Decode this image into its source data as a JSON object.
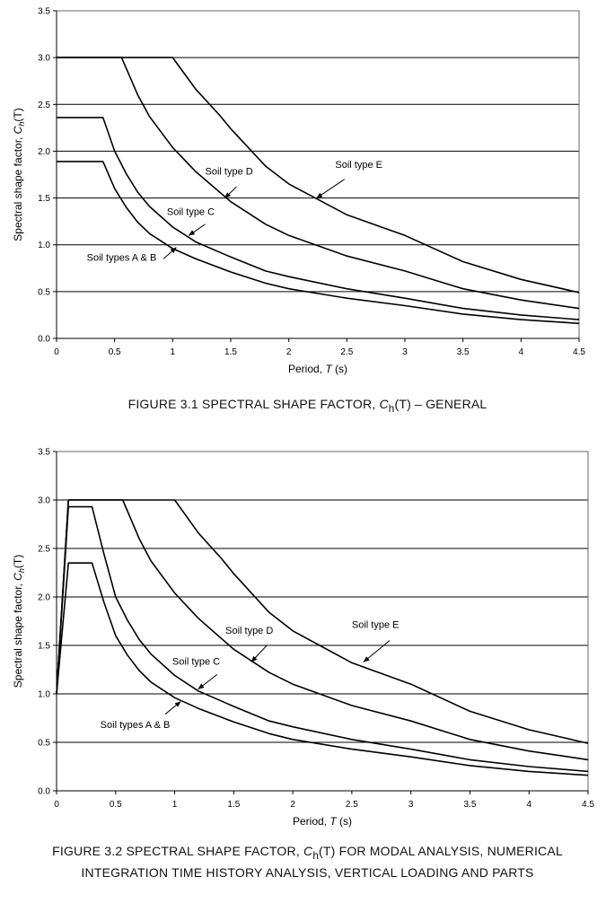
{
  "chart_data": [
    {
      "type": "line",
      "title": "FIGURE 3.1 SPECTRAL SHAPE FACTOR, Ch(T) – GENERAL",
      "caption": {
        "pre": "FIGURE 3.1 SPECTRAL SHAPE FACTOR, ",
        "sym": "C",
        "sub": "h",
        "post": "(T) – GENERAL"
      },
      "xlabel": {
        "text": "Period, ",
        "sym": "T",
        "post": " (s)"
      },
      "ylabel": {
        "text": "Spectral shape factor, ",
        "sym": "C",
        "sub": "h",
        "post": "(T)"
      },
      "xlim": [
        0,
        4.5
      ],
      "ylim": [
        0,
        3.5
      ],
      "xticks": [
        "0",
        "0.5",
        "1",
        "1.5",
        "2",
        "2.5",
        "3",
        "3.5",
        "4",
        "4.5"
      ],
      "yticks": [
        "0.0",
        "0.5",
        "1.0",
        "1.5",
        "2.0",
        "2.5",
        "3.0",
        "3.5"
      ],
      "grid": "horizontal",
      "series": [
        {
          "name": "Soil types A & B",
          "points": [
            [
              0,
              1.89
            ],
            [
              0.4,
              1.89
            ],
            [
              0.5,
              1.6
            ],
            [
              0.6,
              1.4
            ],
            [
              0.7,
              1.24
            ],
            [
              0.8,
              1.12
            ],
            [
              1.0,
              0.96
            ],
            [
              1.2,
              0.85
            ],
            [
              1.5,
              0.71
            ],
            [
              1.8,
              0.59
            ],
            [
              2.0,
              0.53
            ],
            [
              2.5,
              0.43
            ],
            [
              3.0,
              0.35
            ],
            [
              3.5,
              0.26
            ],
            [
              4.0,
              0.2
            ],
            [
              4.5,
              0.16
            ]
          ]
        },
        {
          "name": "Soil type C",
          "points": [
            [
              0,
              2.36
            ],
            [
              0.4,
              2.36
            ],
            [
              0.5,
              2.0
            ],
            [
              0.6,
              1.76
            ],
            [
              0.7,
              1.56
            ],
            [
              0.8,
              1.41
            ],
            [
              1.0,
              1.19
            ],
            [
              1.2,
              1.03
            ],
            [
              1.5,
              0.87
            ],
            [
              1.8,
              0.72
            ],
            [
              2.0,
              0.66
            ],
            [
              2.5,
              0.53
            ],
            [
              3.0,
              0.43
            ],
            [
              3.5,
              0.32
            ],
            [
              4.0,
              0.25
            ],
            [
              4.5,
              0.2
            ]
          ]
        },
        {
          "name": "Soil type D",
          "points": [
            [
              0,
              3.0
            ],
            [
              0.56,
              3.0
            ],
            [
              0.7,
              2.6
            ],
            [
              0.8,
              2.37
            ],
            [
              1.0,
              2.04
            ],
            [
              1.2,
              1.78
            ],
            [
              1.5,
              1.46
            ],
            [
              1.8,
              1.22
            ],
            [
              2.0,
              1.1
            ],
            [
              2.5,
              0.88
            ],
            [
              3.0,
              0.72
            ],
            [
              3.5,
              0.53
            ],
            [
              4.0,
              0.41
            ],
            [
              4.5,
              0.32
            ]
          ]
        },
        {
          "name": "Soil type E",
          "points": [
            [
              0,
              3.0
            ],
            [
              1.0,
              3.0
            ],
            [
              1.2,
              2.66
            ],
            [
              1.4,
              2.39
            ],
            [
              1.5,
              2.24
            ],
            [
              1.8,
              1.84
            ],
            [
              2.0,
              1.65
            ],
            [
              2.5,
              1.32
            ],
            [
              3.0,
              1.1
            ],
            [
              3.5,
              0.82
            ],
            [
              4.0,
              0.63
            ],
            [
              4.5,
              0.49
            ]
          ]
        }
      ],
      "annotations": [
        {
          "text": "Soil type E",
          "x": 2.4,
          "y": 1.82,
          "ax": 2.24,
          "ay": 1.5,
          "anchor": "start",
          "arrow_from": [
            2.48,
            1.7
          ]
        },
        {
          "text": "Soil type D",
          "x": 1.28,
          "y": 1.75,
          "ax": 1.45,
          "ay": 1.5,
          "anchor": "start",
          "arrow_from": [
            1.55,
            1.62
          ]
        },
        {
          "text": "Soil type C",
          "x": 0.95,
          "y": 1.32,
          "ax": 1.14,
          "ay": 1.1,
          "anchor": "start",
          "arrow_from": [
            1.28,
            1.22
          ]
        },
        {
          "text": "Soil types A & B",
          "x": 0.26,
          "y": 0.83,
          "ax": 1.03,
          "ay": 0.97,
          "anchor": "start",
          "arrow_from": [
            0.92,
            0.85
          ]
        }
      ]
    },
    {
      "type": "line",
      "title": "FIGURE 3.2 SPECTRAL SHAPE FACTOR, Ch(T) FOR MODAL ANALYSIS, NUMERICAL INTEGRATION TIME HISTORY ANALYSIS, VERTICAL LOADING AND PARTS",
      "caption": {
        "pre": "FIGURE 3.2  SPECTRAL SHAPE FACTOR, ",
        "sym": "C",
        "sub": "h",
        "post": "(T) FOR MODAL ANALYSIS, NUMERICAL",
        "line2": "INTEGRATION TIME HISTORY ANALYSIS, VERTICAL LOADING AND PARTS"
      },
      "xlabel": {
        "text": "Period, ",
        "sym": "T",
        "post": " (s)"
      },
      "ylabel": {
        "text": "Spectral shape factor, ",
        "sym": "C",
        "sub": "h",
        "post": "(T)"
      },
      "xlim": [
        0,
        4.5
      ],
      "ylim": [
        0,
        3.5
      ],
      "xticks": [
        "0",
        "0.5",
        "1",
        "1.5",
        "2",
        "2.5",
        "3",
        "3.5",
        "4",
        "4.5"
      ],
      "yticks": [
        "0.0",
        "0.5",
        "1.0",
        "1.5",
        "2.0",
        "2.5",
        "3.0",
        "3.5"
      ],
      "grid": "horizontal",
      "series": [
        {
          "name": "Soil types A & B",
          "points": [
            [
              0,
              1.0
            ],
            [
              0.1,
              2.35
            ],
            [
              0.3,
              2.35
            ],
            [
              0.4,
              1.95
            ],
            [
              0.5,
              1.6
            ],
            [
              0.6,
              1.4
            ],
            [
              0.7,
              1.24
            ],
            [
              0.8,
              1.12
            ],
            [
              1.0,
              0.96
            ],
            [
              1.2,
              0.85
            ],
            [
              1.5,
              0.71
            ],
            [
              1.8,
              0.59
            ],
            [
              2.0,
              0.53
            ],
            [
              2.5,
              0.43
            ],
            [
              3.0,
              0.35
            ],
            [
              3.5,
              0.26
            ],
            [
              4.0,
              0.2
            ],
            [
              4.5,
              0.16
            ]
          ]
        },
        {
          "name": "Soil type C",
          "points": [
            [
              0,
              1.0
            ],
            [
              0.1,
              2.93
            ],
            [
              0.3,
              2.93
            ],
            [
              0.4,
              2.45
            ],
            [
              0.5,
              2.0
            ],
            [
              0.6,
              1.76
            ],
            [
              0.7,
              1.56
            ],
            [
              0.8,
              1.41
            ],
            [
              1.0,
              1.19
            ],
            [
              1.2,
              1.03
            ],
            [
              1.5,
              0.87
            ],
            [
              1.8,
              0.72
            ],
            [
              2.0,
              0.66
            ],
            [
              2.5,
              0.53
            ],
            [
              3.0,
              0.43
            ],
            [
              3.5,
              0.32
            ],
            [
              4.0,
              0.25
            ],
            [
              4.5,
              0.2
            ]
          ]
        },
        {
          "name": "Soil type D",
          "points": [
            [
              0,
              1.0
            ],
            [
              0.1,
              3.0
            ],
            [
              0.56,
              3.0
            ],
            [
              0.7,
              2.6
            ],
            [
              0.8,
              2.37
            ],
            [
              1.0,
              2.04
            ],
            [
              1.2,
              1.78
            ],
            [
              1.5,
              1.46
            ],
            [
              1.8,
              1.22
            ],
            [
              2.0,
              1.1
            ],
            [
              2.5,
              0.88
            ],
            [
              3.0,
              0.72
            ],
            [
              3.5,
              0.53
            ],
            [
              4.0,
              0.41
            ],
            [
              4.5,
              0.32
            ]
          ]
        },
        {
          "name": "Soil type E",
          "points": [
            [
              0,
              1.0
            ],
            [
              0.1,
              3.0
            ],
            [
              1.0,
              3.0
            ],
            [
              1.2,
              2.66
            ],
            [
              1.4,
              2.39
            ],
            [
              1.5,
              2.24
            ],
            [
              1.8,
              1.84
            ],
            [
              2.0,
              1.65
            ],
            [
              2.5,
              1.32
            ],
            [
              3.0,
              1.1
            ],
            [
              3.5,
              0.82
            ],
            [
              4.0,
              0.63
            ],
            [
              4.5,
              0.49
            ]
          ]
        }
      ],
      "annotations": [
        {
          "text": "Soil type E",
          "x": 2.5,
          "y": 1.68,
          "ax": 2.6,
          "ay": 1.33,
          "anchor": "start",
          "arrow_from": [
            2.82,
            1.55
          ]
        },
        {
          "text": "Soil type D",
          "x": 1.43,
          "y": 1.62,
          "ax": 1.65,
          "ay": 1.33,
          "anchor": "start",
          "arrow_from": [
            1.78,
            1.5
          ]
        },
        {
          "text": "Soil type C",
          "x": 0.98,
          "y": 1.3,
          "ax": 1.2,
          "ay": 1.05,
          "anchor": "start",
          "arrow_from": [
            1.36,
            1.2
          ]
        },
        {
          "text": "Soil types A & B",
          "x": 0.37,
          "y": 0.65,
          "ax": 1.05,
          "ay": 0.92,
          "anchor": "start",
          "arrow_from": [
            0.92,
            0.79
          ]
        }
      ]
    }
  ]
}
